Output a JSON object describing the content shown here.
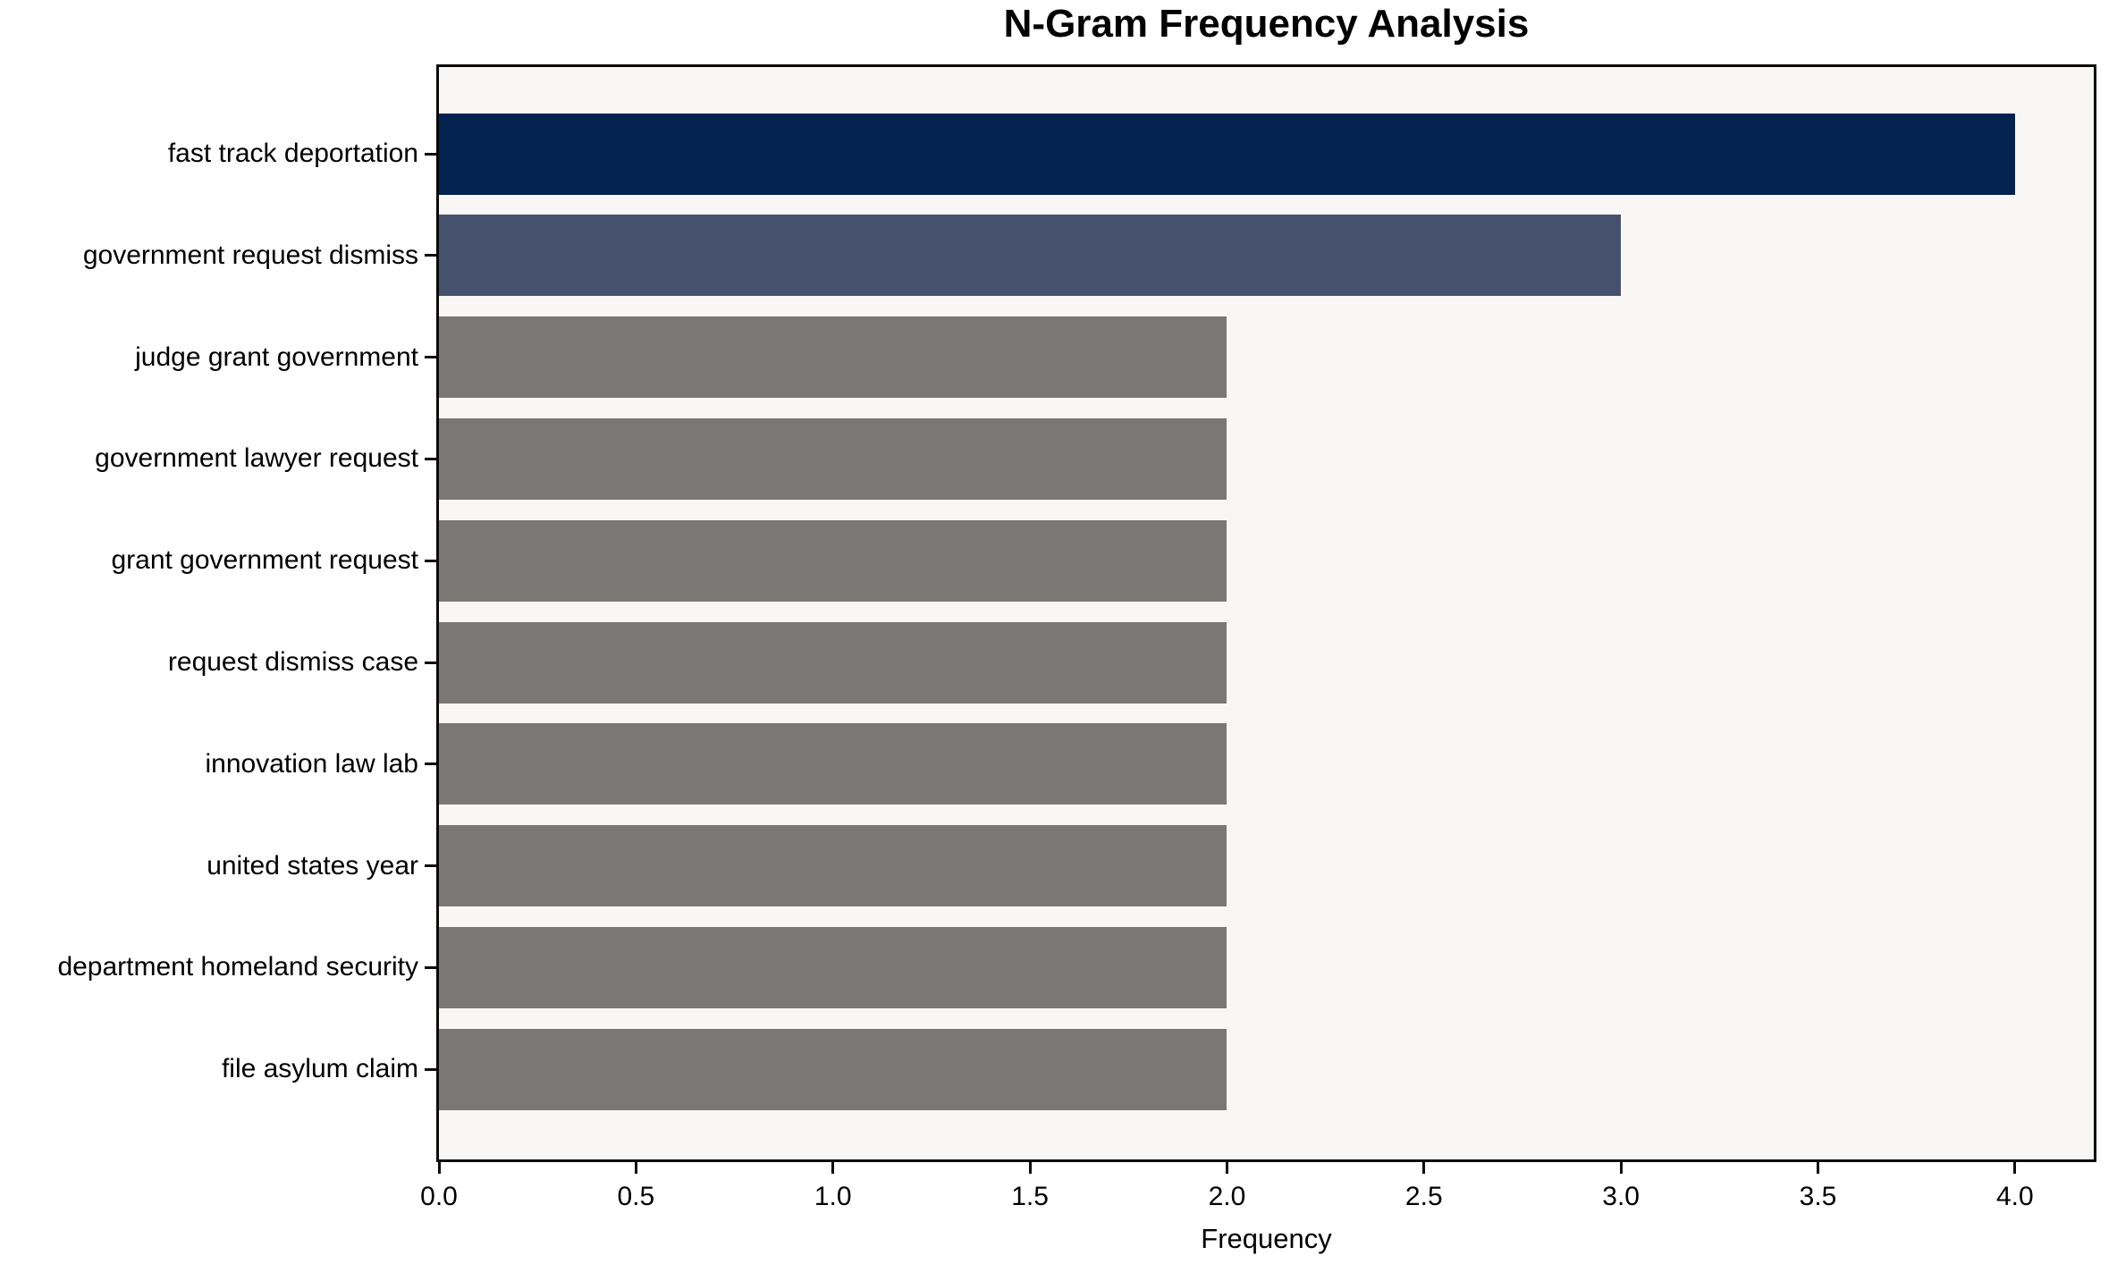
{
  "chart_data": {
    "type": "bar",
    "orientation": "horizontal",
    "title": "N-Gram Frequency Analysis",
    "xlabel": "Frequency",
    "ylabel": "",
    "categories": [
      "fast track deportation",
      "government request dismiss",
      "judge grant government",
      "government lawyer request",
      "grant government request",
      "request dismiss case",
      "innovation law lab",
      "united states year",
      "department homeland security",
      "file asylum claim"
    ],
    "values": [
      4,
      3,
      2,
      2,
      2,
      2,
      2,
      2,
      2,
      2
    ],
    "bar_colors": [
      "#032250",
      "#46516e",
      "#7a7875",
      "#7a7875",
      "#7a7875",
      "#7a7875",
      "#7a7875",
      "#7a7875",
      "#7a7875",
      "#7a7875"
    ],
    "xlim": [
      0,
      4.2
    ],
    "xticks": [
      0.0,
      0.5,
      1.0,
      1.5,
      2.0,
      2.5,
      3.0,
      3.5,
      4.0
    ],
    "xtick_labels": [
      "0.0",
      "0.5",
      "1.0",
      "1.5",
      "2.0",
      "2.5",
      "3.0",
      "3.5",
      "4.0"
    ],
    "grid": false,
    "legend": "none",
    "plot_background": "#f8f7f6",
    "figure_background": "#ffffff",
    "spine_color": "#0a0a0a"
  }
}
